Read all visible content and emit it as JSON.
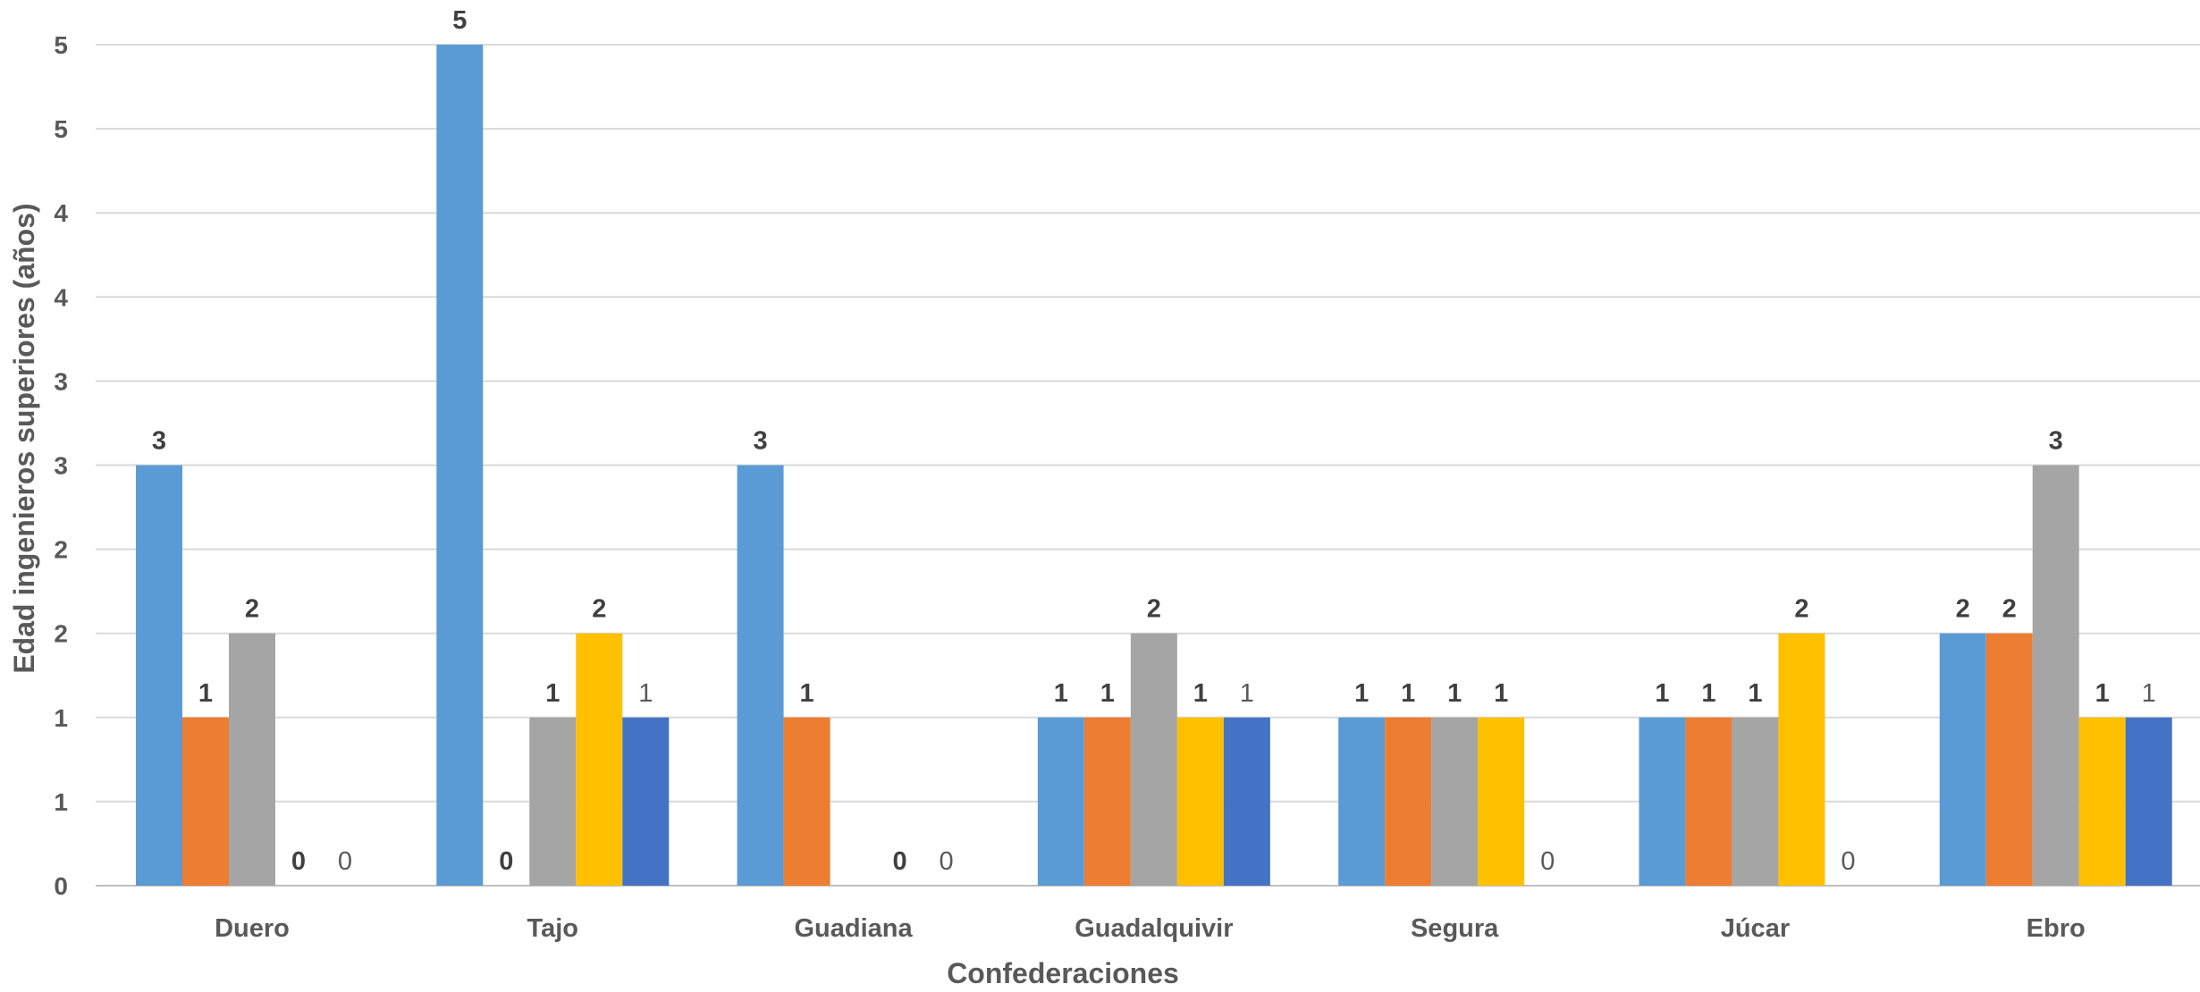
{
  "chart_data": {
    "type": "bar",
    "title": "",
    "xlabel": "Confederaciones",
    "ylabel": "Edad ingenieros superiores (años)",
    "ylim": [
      0,
      5
    ],
    "y_tick_labels": [
      "0",
      "1",
      "1",
      "2",
      "2",
      "3",
      "3",
      "4",
      "4",
      "5",
      "5"
    ],
    "grid": true,
    "legend": "none",
    "categories": [
      "Duero",
      "Tajo",
      "Guadiana",
      "Guadalquivir",
      "Segura",
      "Júcar",
      "Ebro"
    ],
    "series": [
      {
        "color": "#5B9BD5",
        "label_style": "bold",
        "values": [
          2.5,
          5,
          2.5,
          1,
          1,
          1,
          1.5
        ],
        "labels": [
          "3",
          "5",
          "3",
          "1",
          "1",
          "1",
          "2"
        ]
      },
      {
        "color": "#ED7D31",
        "label_style": "bold",
        "values": [
          1,
          0,
          1,
          1,
          1,
          1,
          1.5
        ],
        "labels": [
          "1",
          "0",
          "1",
          "1",
          "1",
          "1",
          "2"
        ]
      },
      {
        "color": "#A5A5A5",
        "label_style": "bold",
        "values": [
          1.5,
          1,
          null,
          1.5,
          1,
          1,
          2.5
        ],
        "labels": [
          "2",
          "1",
          "",
          "2",
          "1",
          "1",
          "3"
        ]
      },
      {
        "color": "#FFC000",
        "label_style": "bold",
        "values": [
          0,
          1.5,
          0,
          1,
          1,
          1.5,
          1
        ],
        "labels": [
          "0",
          "2",
          "0",
          "1",
          "1",
          "2",
          "1"
        ]
      },
      {
        "color": "#4472C4",
        "label_style": "normal",
        "values": [
          0,
          1,
          0,
          1,
          0,
          0,
          1
        ],
        "labels": [
          "0",
          "1",
          "0",
          "1",
          "0",
          "0",
          "1"
        ]
      }
    ]
  }
}
